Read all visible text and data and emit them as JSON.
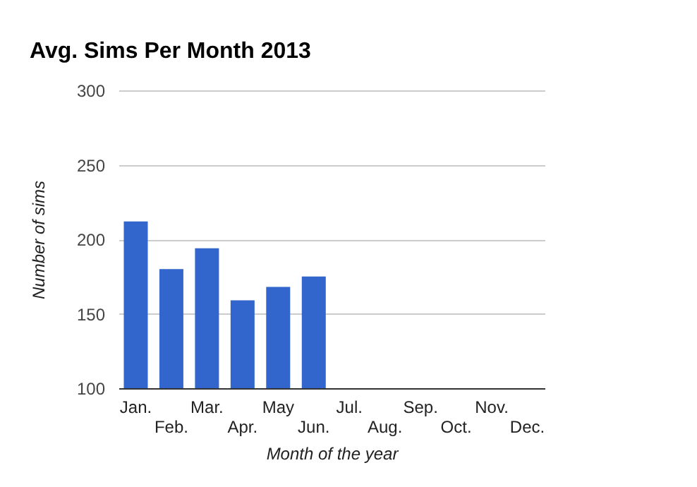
{
  "chart_data": {
    "type": "bar",
    "title": "Avg. Sims Per Month 2013",
    "xlabel": "Month of the year",
    "ylabel": "Number of sims",
    "categories": [
      "Jan.",
      "Feb.",
      "Mar.",
      "Apr.",
      "May",
      "Jun.",
      "Jul.",
      "Aug.",
      "Sep.",
      "Oct.",
      "Nov.",
      "Dec."
    ],
    "values": [
      212,
      180,
      194,
      159,
      168,
      175,
      null,
      null,
      null,
      null,
      null,
      null
    ],
    "color": "#3366cc",
    "ylim": [
      100,
      300
    ],
    "yticks": [
      100,
      150,
      200,
      250,
      300
    ],
    "grid": "y"
  }
}
